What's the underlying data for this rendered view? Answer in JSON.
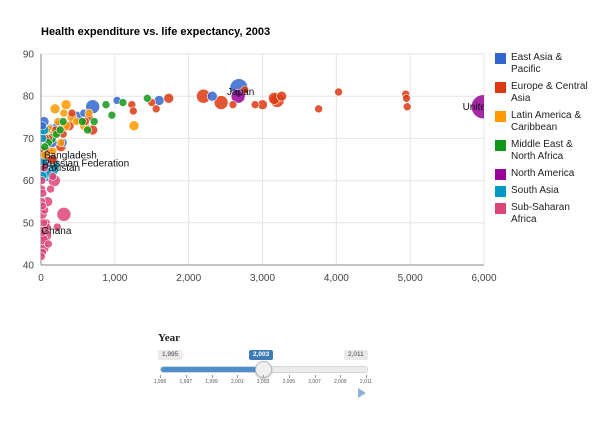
{
  "chart_data": {
    "type": "scatter",
    "title": "Health expenditure vs. life expectancy, 2003",
    "xlabel": "",
    "ylabel": "",
    "xlim": [
      0,
      6000
    ],
    "ylim": [
      40,
      90
    ],
    "x_ticks": [
      "0",
      "1,000",
      "2,000",
      "3,000",
      "4,000",
      "5,000",
      "6,000"
    ],
    "x_tick_values": [
      0,
      1000,
      2000,
      3000,
      4000,
      5000,
      6000
    ],
    "y_ticks": [
      "40",
      "50",
      "60",
      "70",
      "80",
      "90"
    ],
    "y_tick_values": [
      40,
      50,
      60,
      70,
      80,
      90
    ],
    "grid": true,
    "legend_position": "right",
    "series": [
      {
        "name": "East Asia & Pacific",
        "color": "#3366cc",
        "points": [
          [
            2680,
            82,
            9
          ],
          [
            2320,
            80,
            5
          ],
          [
            1600,
            79,
            5
          ],
          [
            1030,
            79,
            4
          ],
          [
            700,
            77.5,
            7
          ],
          [
            480,
            75,
            6
          ],
          [
            230,
            73,
            5
          ],
          [
            120,
            72,
            6
          ],
          [
            60,
            71,
            7
          ],
          [
            40,
            74,
            5
          ],
          [
            80,
            65,
            6
          ],
          [
            150,
            69,
            5
          ],
          [
            30,
            63,
            6
          ],
          [
            300,
            69,
            4
          ],
          [
            20,
            73,
            4
          ],
          [
            580,
            76,
            4
          ]
        ]
      },
      {
        "name": "Europe & Central Asia",
        "color": "#dc3912",
        "points": [
          [
            2200,
            80,
            7
          ],
          [
            2440,
            78.5,
            7
          ],
          [
            2600,
            78,
            4
          ],
          [
            2900,
            78,
            4
          ],
          [
            3000,
            78,
            5
          ],
          [
            3200,
            79,
            7
          ],
          [
            3260,
            80,
            5
          ],
          [
            3160,
            79.5,
            6
          ],
          [
            3760,
            77,
            4
          ],
          [
            4030,
            81,
            4
          ],
          [
            4940,
            80.5,
            4
          ],
          [
            4950,
            79.5,
            4
          ],
          [
            4960,
            77.5,
            4
          ],
          [
            1730,
            79.5,
            5
          ],
          [
            1500,
            78.5,
            4
          ],
          [
            1230,
            78,
            4
          ],
          [
            1250,
            76.5,
            4
          ],
          [
            1560,
            77,
            4
          ],
          [
            2760,
            81.5,
            4
          ],
          [
            700,
            72,
            5
          ],
          [
            650,
            75,
            4
          ],
          [
            600,
            74,
            4
          ],
          [
            380,
            73,
            5
          ],
          [
            300,
            71,
            4
          ],
          [
            270,
            68,
            5
          ],
          [
            200,
            72,
            4
          ],
          [
            150,
            65,
            5
          ],
          [
            100,
            70,
            4
          ],
          [
            110,
            67,
            4
          ],
          [
            60,
            70,
            4
          ],
          [
            40,
            67,
            5
          ],
          [
            420,
            76,
            4
          ]
        ]
      },
      {
        "name": "Latin America & Caribbean",
        "color": "#ff9900",
        "points": [
          [
            340,
            78,
            5
          ],
          [
            190,
            77,
            5
          ],
          [
            420,
            75,
            5
          ],
          [
            1260,
            73,
            5
          ],
          [
            590,
            73,
            5
          ],
          [
            330,
            73,
            5
          ],
          [
            110,
            72,
            5
          ],
          [
            180,
            71,
            5
          ],
          [
            90,
            70,
            5
          ],
          [
            270,
            69,
            4
          ],
          [
            160,
            67,
            4
          ],
          [
            50,
            66,
            4
          ],
          [
            310,
            76,
            4
          ],
          [
            480,
            74,
            4
          ],
          [
            650,
            76,
            4
          ],
          [
            230,
            74,
            4
          ]
        ]
      },
      {
        "name": "Middle East & North Africa",
        "color": "#109618",
        "points": [
          [
            1440,
            79.5,
            4
          ],
          [
            1110,
            78.5,
            4
          ],
          [
            960,
            75.5,
            4
          ],
          [
            720,
            74,
            4
          ],
          [
            630,
            72,
            4
          ],
          [
            300,
            74,
            4
          ],
          [
            210,
            71,
            4
          ],
          [
            140,
            70,
            5
          ],
          [
            100,
            69,
            4
          ],
          [
            50,
            68,
            4
          ],
          [
            260,
            72,
            4
          ],
          [
            560,
            74,
            4
          ],
          [
            880,
            78,
            4
          ]
        ]
      },
      {
        "name": "North America",
        "color": "#990099",
        "points": [
          [
            5990,
            77.5,
            12
          ],
          [
            2670,
            80,
            7
          ]
        ]
      },
      {
        "name": "South Asia",
        "color": "#0099c6",
        "points": [
          [
            30,
            63.5,
            16
          ],
          [
            20,
            65,
            6
          ],
          [
            60,
            62,
            6
          ],
          [
            40,
            72,
            5
          ],
          [
            15,
            61,
            5
          ],
          [
            25,
            70,
            4
          ]
        ]
      },
      {
        "name": "Sub-Saharan Africa",
        "color": "#dd4477",
        "points": [
          [
            310,
            52,
            7
          ],
          [
            180,
            60,
            6
          ],
          [
            90,
            55,
            5
          ],
          [
            70,
            50,
            4
          ],
          [
            60,
            47,
            6
          ],
          [
            40,
            44,
            5
          ],
          [
            30,
            46,
            5
          ],
          [
            20,
            48,
            5
          ],
          [
            15,
            52,
            5
          ],
          [
            10,
            55,
            4
          ],
          [
            8,
            58,
            4
          ],
          [
            12,
            60,
            4
          ],
          [
            25,
            57,
            4
          ],
          [
            50,
            53,
            4
          ],
          [
            80,
            49,
            4
          ],
          [
            100,
            45,
            4
          ],
          [
            130,
            58,
            4
          ],
          [
            220,
            49,
            4
          ],
          [
            20,
            43,
            4
          ],
          [
            35,
            50,
            4
          ],
          [
            160,
            61,
            4
          ],
          [
            45,
            63,
            4
          ],
          [
            5,
            42,
            4
          ],
          [
            18,
            54,
            4
          ]
        ]
      }
    ],
    "annotations": [
      {
        "text": "Japan",
        "x": 2520,
        "y": 81
      },
      {
        "text": "United",
        "x": 5710,
        "y": 77.5
      },
      {
        "text": "Bangladesh",
        "x": 40,
        "y": 66
      },
      {
        "text": "Russian Federation",
        "x": 20,
        "y": 64
      },
      {
        "text": "Pakistan",
        "x": 10,
        "y": 63
      },
      {
        "text": "Ghana",
        "x": 5,
        "y": 48
      }
    ],
    "annotation_visible_text": [
      "Japa",
      "United",
      "desh",
      "Federation",
      "tan",
      "ana"
    ]
  },
  "slider": {
    "title": "Year",
    "min_label": "1,995",
    "max_label": "2,011",
    "current_label": "2,003",
    "min": 1995,
    "max": 2011,
    "value": 2003,
    "tick_labels": [
      "1,995",
      "1,997",
      "1,999",
      "2,001",
      "2,003",
      "2,005",
      "2,007",
      "2,009",
      "2,011"
    ],
    "accent_color": "#3d7ab8"
  }
}
